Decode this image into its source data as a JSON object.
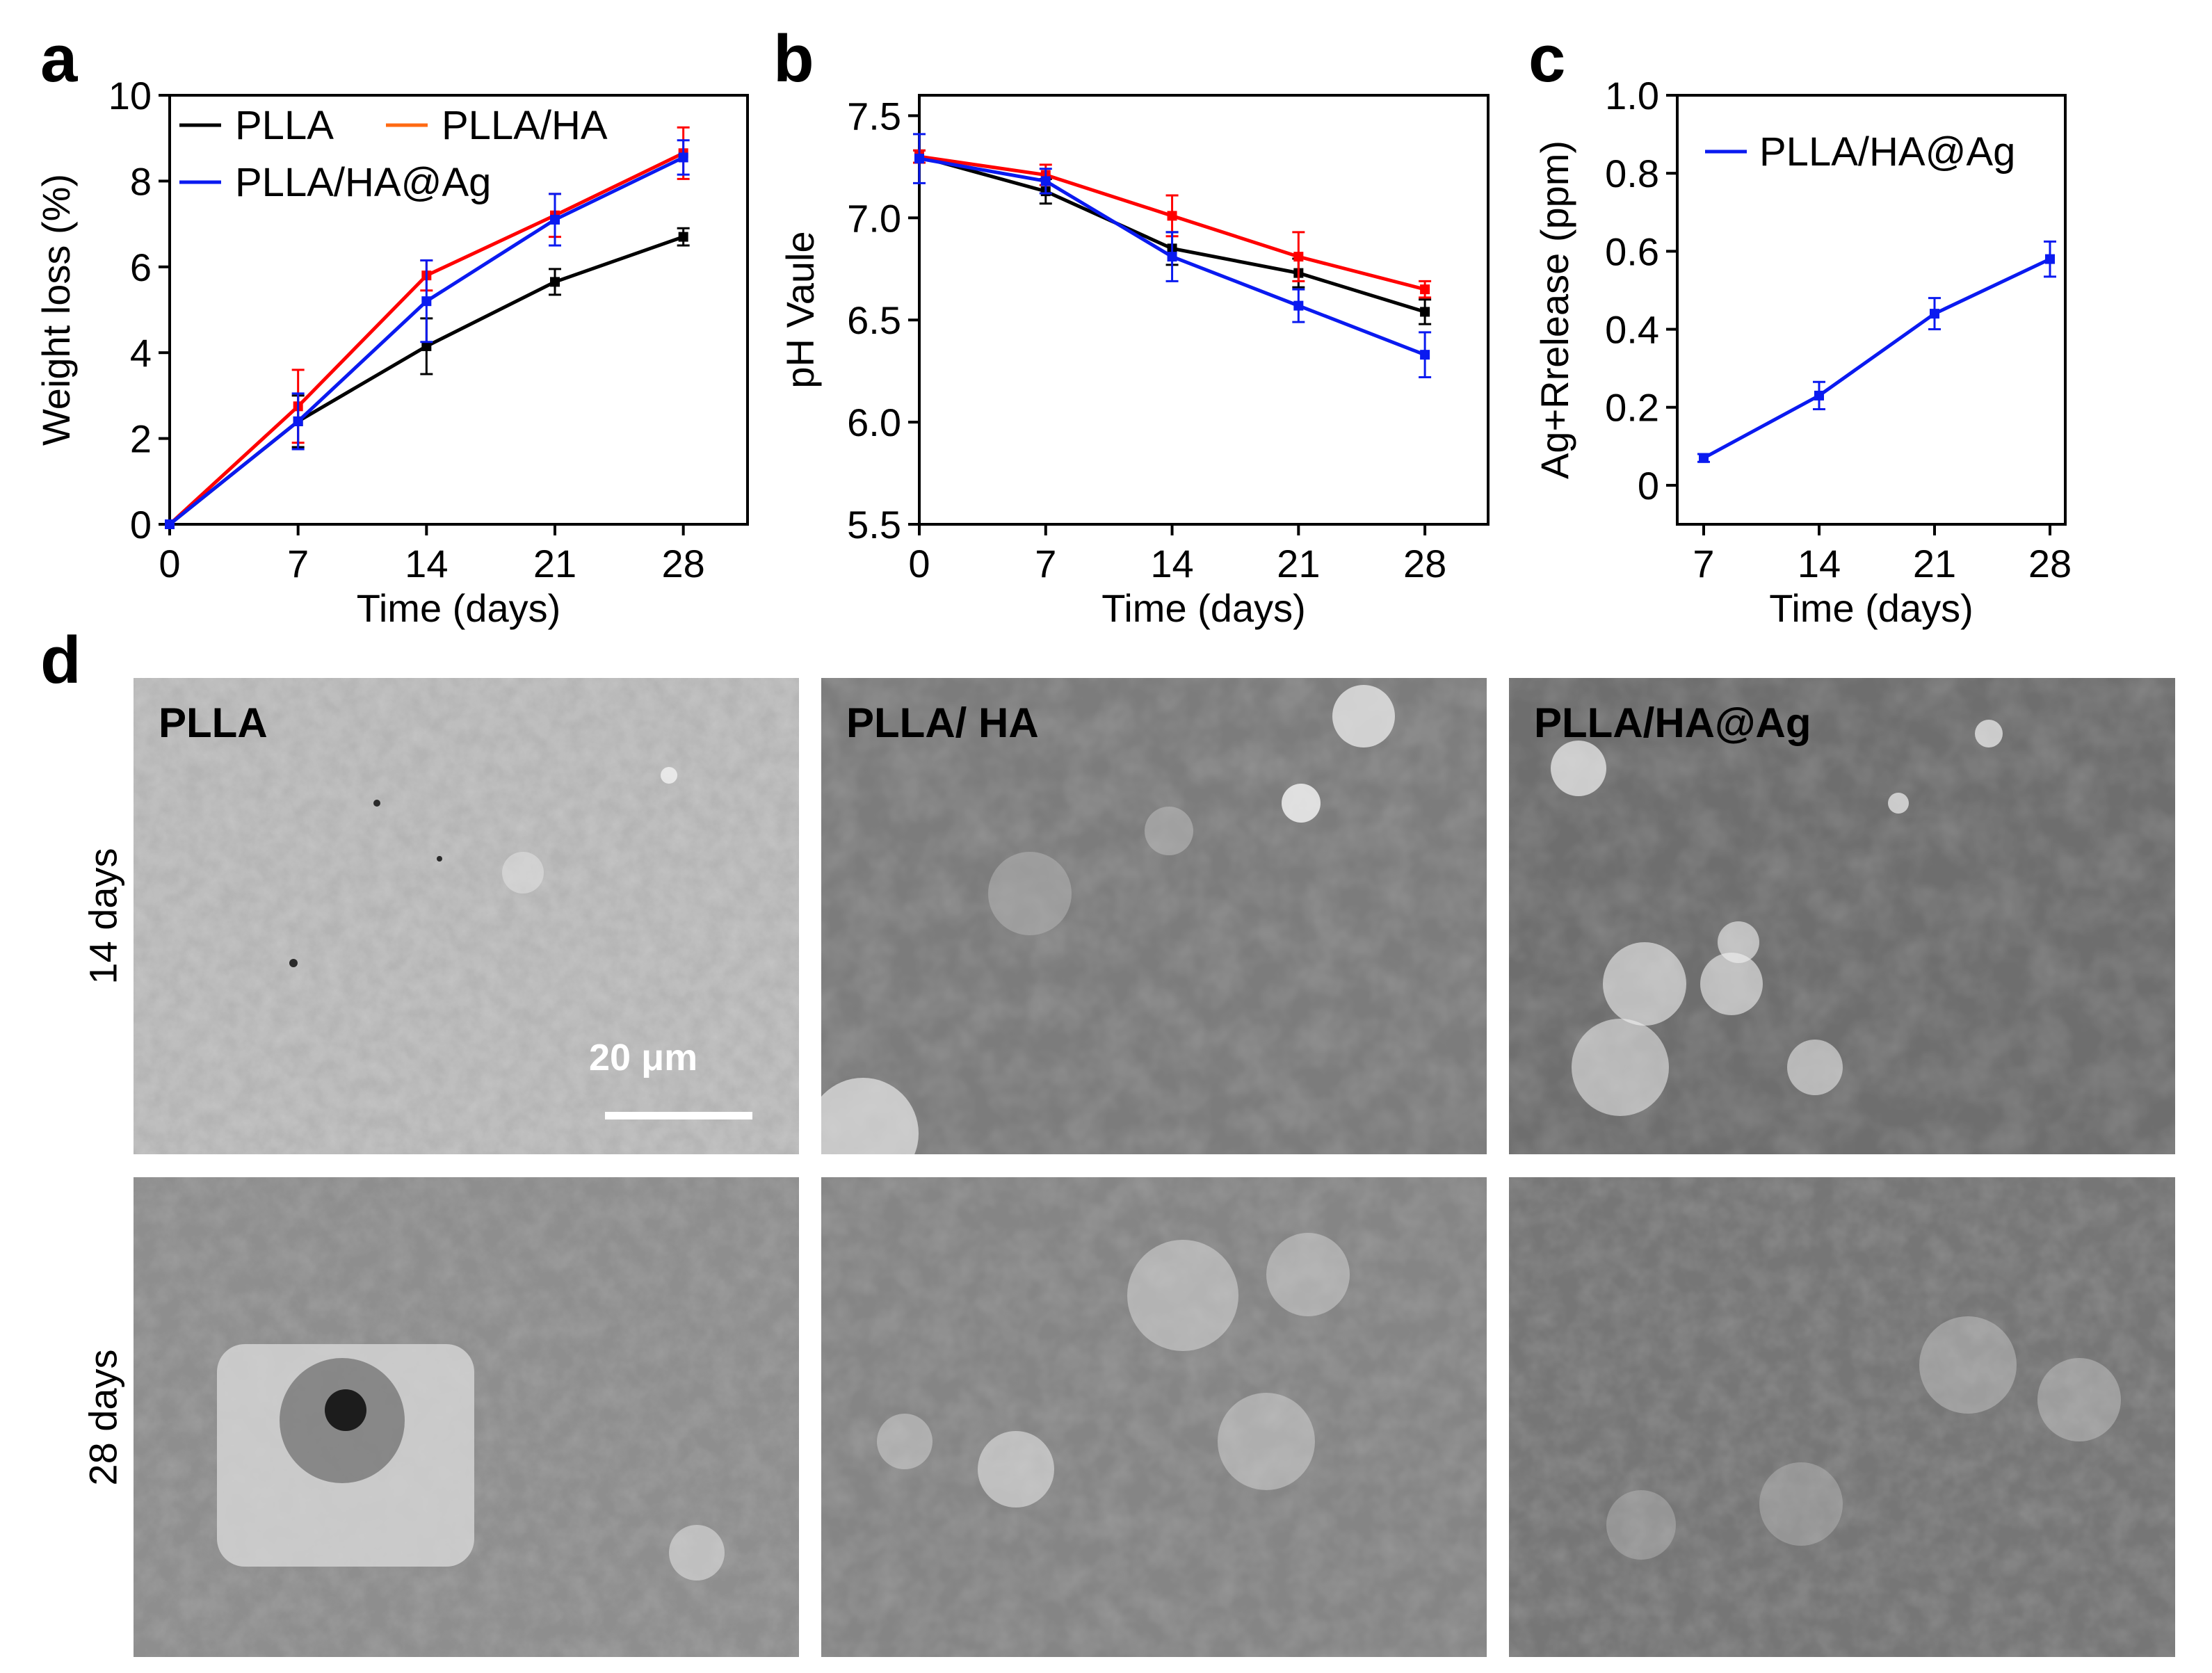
{
  "panel_letters": {
    "a": "a",
    "b": "b",
    "c": "c",
    "d": "d"
  },
  "colors": {
    "PLLA": "#000000",
    "PLLA/HA": "#ff0000",
    "PLLA/HA@Ag": "#0a1af0",
    "legend_PLLA_HA": "#ff6a13"
  },
  "chart_data": [
    {
      "type": "line",
      "title": "",
      "xlabel": "Time (days)",
      "ylabel": "Weight loss (%)",
      "x": [
        0,
        7,
        14,
        21,
        28
      ],
      "xticks": [
        "0",
        "7",
        "14",
        "21",
        "28"
      ],
      "yticks": [
        "0",
        "2",
        "4",
        "6",
        "8",
        "10"
      ],
      "xlim": [
        0,
        31.5
      ],
      "ylim": [
        0,
        10
      ],
      "legend_placement": "top-left",
      "series": [
        {
          "name": "PLLA",
          "values": [
            0,
            2.4,
            4.15,
            5.65,
            6.7
          ],
          "errors": [
            0,
            0.6,
            0.65,
            0.3,
            0.2
          ]
        },
        {
          "name": "PLLA/HA",
          "values": [
            0,
            2.75,
            5.8,
            7.2,
            8.65
          ],
          "errors": [
            0,
            0.85,
            0.35,
            0.5,
            0.6
          ]
        },
        {
          "name": "PLLA/HA@Ag",
          "values": [
            0,
            2.4,
            5.2,
            7.1,
            8.55
          ],
          "errors": [
            0,
            0.65,
            0.95,
            0.6,
            0.4
          ]
        }
      ]
    },
    {
      "type": "line",
      "title": "",
      "xlabel": "Time (days)",
      "ylabel": "pH Vaule",
      "x": [
        0,
        7,
        14,
        21,
        28
      ],
      "xticks": [
        "0",
        "7",
        "14",
        "21",
        "28"
      ],
      "yticks": [
        "5.5",
        "6.0",
        "6.5",
        "7.0",
        "7.5"
      ],
      "xlim": [
        0,
        31.5
      ],
      "ylim": [
        5.5,
        7.6
      ],
      "series": [
        {
          "name": "PLLA",
          "values": [
            7.3,
            7.13,
            6.85,
            6.73,
            6.54
          ],
          "errors": [
            0.03,
            0.06,
            0.08,
            0.07,
            0.06
          ]
        },
        {
          "name": "PLLA/HA",
          "values": [
            7.3,
            7.21,
            7.01,
            6.81,
            6.65
          ],
          "errors": [
            0.03,
            0.05,
            0.1,
            0.12,
            0.04
          ]
        },
        {
          "name": "PLLA/HA@Ag",
          "values": [
            7.29,
            7.18,
            6.81,
            6.57,
            6.33
          ],
          "errors": [
            0.12,
            0.06,
            0.12,
            0.08,
            0.11
          ]
        }
      ]
    },
    {
      "type": "line",
      "title": "",
      "xlabel": "Time (days)",
      "ylabel": "Ag+Rrelease (ppm)",
      "x": [
        7,
        14,
        21,
        28
      ],
      "xticks": [
        "7",
        "14",
        "21",
        "28"
      ],
      "yticks": [
        "0",
        "0.2",
        "0.4",
        "0.6",
        "0.8",
        "1.0"
      ],
      "xlim": [
        7,
        28
      ],
      "ylim": [
        -0.1,
        1.0
      ],
      "legend_placement": "top-left",
      "series": [
        {
          "name": "PLLA/HA@Ag",
          "values": [
            0.07,
            0.23,
            0.44,
            0.58
          ],
          "errors": [
            0.01,
            0.035,
            0.04,
            0.045
          ]
        }
      ]
    }
  ],
  "sem": {
    "row_labels": [
      "14 days",
      "28 days"
    ],
    "column_labels": [
      "PLLA",
      "PLLA/ HA",
      "PLLA/HA@Ag"
    ],
    "scale_bar": "20 μm"
  }
}
